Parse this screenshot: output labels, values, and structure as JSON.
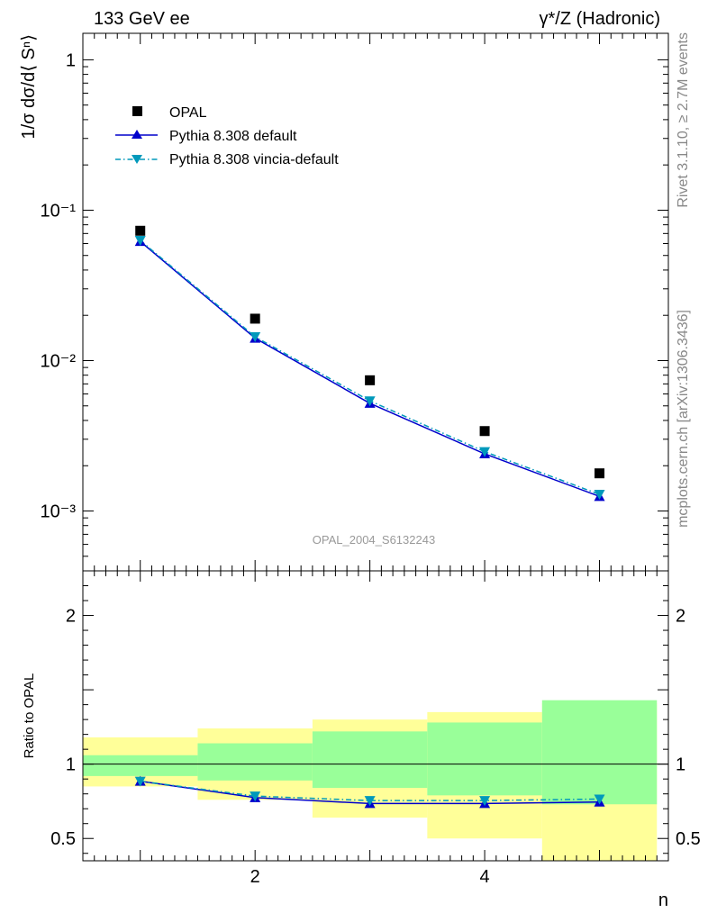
{
  "header": {
    "left": "133 GeV ee",
    "right": "γ*/Z (Hadronic)"
  },
  "side_text": {
    "rivet": "Rivet 3.1.10, ≥ 2.7M events",
    "mcplots": "mcplots.cern.ch [arXiv:1306.3436]"
  },
  "watermark": "OPAL_2004_S6132243",
  "chart_data": [
    {
      "type": "scatter",
      "panel": "main",
      "ylabel": "1/σ dσ/d⟨ Sⁿ⟩",
      "yscale": "log",
      "ylim": [
        0.0004,
        1.5
      ],
      "xlim": [
        0.5,
        5.6
      ],
      "y_ticks": [
        {
          "value": 1,
          "label": "1"
        },
        {
          "value": 0.1,
          "label": "10⁻¹"
        },
        {
          "value": 0.01,
          "label": "10⁻²"
        },
        {
          "value": 0.001,
          "label": "10⁻³"
        }
      ],
      "legend_position": "top-left",
      "series": [
        {
          "name": "OPAL",
          "marker": "square",
          "color": "#000000",
          "x": [
            1,
            2,
            3,
            4,
            5
          ],
          "values": [
            0.073,
            0.019,
            0.0074,
            0.0034,
            0.00178
          ]
        },
        {
          "name": "Pythia 8.308 default",
          "marker": "triangle-up",
          "line": "solid",
          "color": "#0000cc",
          "x": [
            1,
            2,
            3,
            4,
            5
          ],
          "values": [
            0.062,
            0.0141,
            0.0052,
            0.0024,
            0.00125
          ]
        },
        {
          "name": "Pythia 8.308 vincia-default",
          "marker": "triangle-down",
          "line": "dashdot",
          "color": "#0099bb",
          "x": [
            1,
            2,
            3,
            4,
            5
          ],
          "values": [
            0.063,
            0.0144,
            0.0054,
            0.00248,
            0.00129
          ]
        }
      ]
    },
    {
      "type": "line",
      "panel": "ratio",
      "ylabel": "Ratio to OPAL",
      "xlabel": "n",
      "ylim": [
        0.35,
        2.3
      ],
      "xlim": [
        0.5,
        5.6
      ],
      "y_ticks": [
        {
          "value": 0.5,
          "label": "0.5"
        },
        {
          "value": 1,
          "label": "1"
        },
        {
          "value": 2,
          "label": "2"
        }
      ],
      "x_ticks": [
        {
          "value": 2,
          "label": "2"
        },
        {
          "value": 4,
          "label": "4"
        }
      ],
      "bands": [
        {
          "xlo": 0.5,
          "xhi": 1.5,
          "yellow": [
            0.85,
            1.18
          ],
          "green": [
            0.92,
            1.06
          ]
        },
        {
          "xlo": 1.5,
          "xhi": 2.5,
          "yellow": [
            0.76,
            1.24
          ],
          "green": [
            0.89,
            1.14
          ]
        },
        {
          "xlo": 2.5,
          "xhi": 3.5,
          "yellow": [
            0.64,
            1.3
          ],
          "green": [
            0.84,
            1.22
          ]
        },
        {
          "xlo": 3.5,
          "xhi": 4.5,
          "yellow": [
            0.5,
            1.35
          ],
          "green": [
            0.79,
            1.28
          ]
        },
        {
          "xlo": 4.5,
          "xhi": 5.5,
          "yellow": [
            0.35,
            1.41
          ],
          "green": [
            0.73,
            1.43
          ]
        }
      ],
      "colors": {
        "yellow": "#ffff99",
        "green": "#99ff99"
      },
      "series": [
        {
          "name": "Pythia 8.308 default",
          "marker": "triangle-up",
          "line": "solid",
          "color": "#0000cc",
          "x": [
            1,
            2,
            3,
            4,
            5
          ],
          "values": [
            0.885,
            0.775,
            0.735,
            0.735,
            0.745
          ]
        },
        {
          "name": "Pythia 8.308 vincia-default",
          "marker": "triangle-down",
          "line": "dashdot",
          "color": "#0099bb",
          "x": [
            1,
            2,
            3,
            4,
            5
          ],
          "values": [
            0.885,
            0.785,
            0.755,
            0.755,
            0.765
          ]
        }
      ]
    }
  ]
}
